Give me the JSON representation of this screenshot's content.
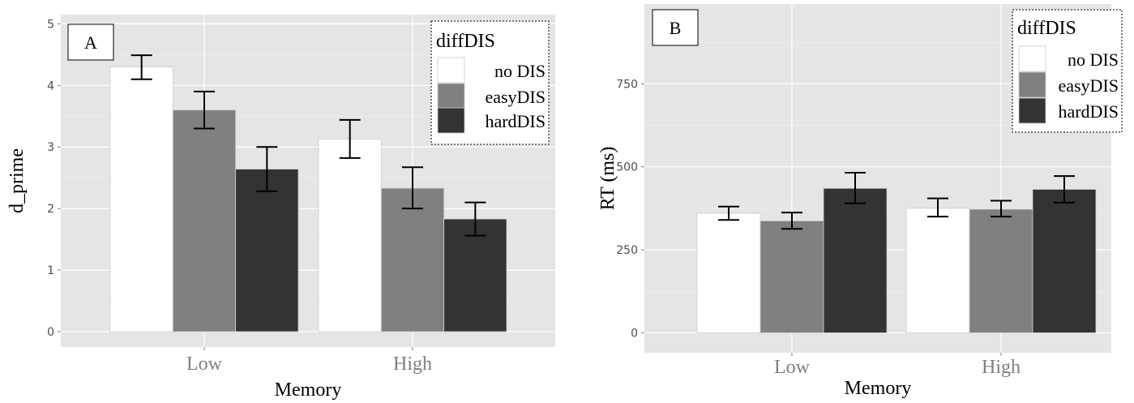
{
  "chart_data": [
    {
      "type": "bar",
      "panel_label": "A",
      "xlabel": "Memory",
      "ylabel": "d_prime",
      "categories": [
        "Low",
        "High"
      ],
      "ylim": [
        -0.25,
        5.15
      ],
      "yticks": [
        "0",
        "1",
        "2",
        "3",
        "4",
        "5"
      ],
      "grid": true,
      "legend": {
        "title": "diffDIS",
        "placement": "top-right",
        "entries": [
          "no DIS",
          "easyDIS",
          "hardDIS"
        ]
      },
      "series": [
        {
          "name": "no DIS",
          "color": "#ffffff",
          "values": [
            4.3,
            3.13
          ],
          "err_low": [
            4.1,
            2.82
          ],
          "err_high": [
            4.49,
            3.44
          ]
        },
        {
          "name": "easyDIS",
          "color": "#808080",
          "values": [
            3.6,
            2.33
          ],
          "err_low": [
            3.3,
            2.0
          ],
          "err_high": [
            3.9,
            2.67
          ]
        },
        {
          "name": "hardDIS",
          "color": "#333333",
          "values": [
            2.64,
            1.83
          ],
          "err_low": [
            2.28,
            1.56
          ],
          "err_high": [
            3.0,
            2.1
          ]
        }
      ]
    },
    {
      "type": "bar",
      "panel_label": "B",
      "xlabel": "Memory",
      "ylabel": "RT (ms)",
      "categories": [
        "Low",
        "High"
      ],
      "ylim": [
        -60,
        990
      ],
      "yticks": [
        "0",
        "250",
        "500",
        "750"
      ],
      "grid": true,
      "legend": {
        "title": "diffDIS",
        "placement": "top-right",
        "entries": [
          "no DIS",
          "easyDIS",
          "hardDIS"
        ]
      },
      "series": [
        {
          "name": "no DIS",
          "color": "#ffffff",
          "values": [
            360,
            375
          ],
          "err_low": [
            340,
            350
          ],
          "err_high": [
            380,
            405
          ]
        },
        {
          "name": "easyDIS",
          "color": "#808080",
          "values": [
            337,
            372
          ],
          "err_low": [
            313,
            350
          ],
          "err_high": [
            362,
            398
          ]
        },
        {
          "name": "hardDIS",
          "color": "#333333",
          "values": [
            435,
            432
          ],
          "err_low": [
            390,
            392
          ],
          "err_high": [
            482,
            472
          ]
        }
      ]
    }
  ]
}
